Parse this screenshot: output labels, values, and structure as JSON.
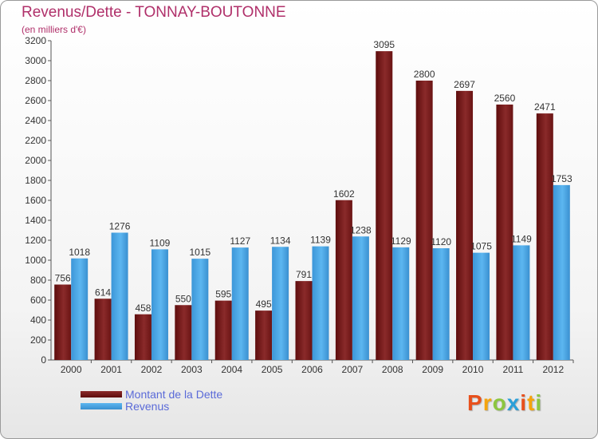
{
  "chart_data": {
    "type": "bar",
    "title": "Revenus/Dette - TONNAY-BOUTONNE",
    "subtitle": "(en milliers d'€)",
    "categories": [
      "2000",
      "2001",
      "2002",
      "2003",
      "2004",
      "2005",
      "2006",
      "2007",
      "2008",
      "2009",
      "2010",
      "2011",
      "2012"
    ],
    "series": [
      {
        "name": "Montant de la Dette",
        "color": "#7a1a1a",
        "values": [
          756,
          614,
          458,
          550,
          595,
          495,
          791,
          1602,
          3095,
          2800,
          2697,
          2560,
          2471
        ]
      },
      {
        "name": "Revenus",
        "color": "#4aa6e6",
        "values": [
          1018,
          1276,
          1109,
          1015,
          1127,
          1134,
          1139,
          1238,
          1129,
          1120,
          1075,
          1149,
          1753
        ]
      }
    ],
    "ylim": [
      0,
      3200
    ],
    "ytick_step": 200,
    "grid": false,
    "legend_position": "bottom-left"
  },
  "logo": {
    "letters": [
      "P",
      "r",
      "o",
      "x",
      "i",
      "t",
      "i"
    ],
    "colors": [
      "#e8501c",
      "#f5a40c",
      "#8cc63f",
      "#2a9fd8",
      "#e8501c",
      "#f5a40c",
      "#8cc63f"
    ]
  }
}
